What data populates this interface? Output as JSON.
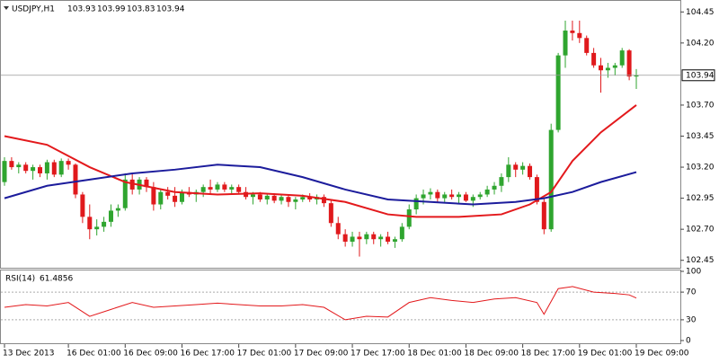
{
  "chart_data": {
    "type": "candlestick",
    "symbol": "USDJPY,H1",
    "up_color": "#2fa52f",
    "down_color": "#e0191c",
    "open": [
      103.08,
      103.25,
      103.2,
      103.22,
      103.17,
      103.2,
      103.15,
      103.24,
      103.14,
      103.25,
      103.22,
      102.98,
      102.8,
      102.7,
      102.72,
      102.76,
      102.85,
      102.87,
      103.1,
      103.02,
      103.1,
      103.04,
      102.9,
      103.0,
      102.97,
      102.92,
      103.0,
      102.98,
      103.0,
      103.04,
      103.02,
      103.06,
      103.02,
      103.04,
      103.0,
      102.96,
      102.98,
      102.94,
      102.97,
      102.93,
      102.96,
      102.92,
      102.94,
      102.96,
      102.94,
      102.96,
      102.91,
      102.75,
      102.66,
      102.6,
      102.64,
      102.62,
      102.66,
      102.62,
      102.64,
      102.6,
      102.62,
      102.72,
      102.86,
      102.95,
      102.98,
      103.0,
      102.95,
      102.98,
      102.96,
      102.98,
      102.93,
      102.96,
      102.98,
      103.02,
      103.05,
      103.12,
      103.22,
      103.18,
      103.21,
      103.12,
      102.92,
      102.7,
      103.5,
      104.1,
      104.3,
      104.28,
      104.24,
      104.12,
      104.02,
      103.98,
      104.0,
      104.02,
      104.14,
      103.93
    ],
    "high": [
      103.28,
      103.28,
      103.24,
      103.24,
      103.22,
      103.22,
      103.26,
      103.26,
      103.27,
      103.27,
      103.23,
      103.0,
      102.9,
      102.78,
      102.8,
      102.9,
      102.9,
      103.15,
      103.15,
      103.12,
      103.12,
      103.08,
      103.02,
      103.04,
      103.04,
      103.02,
      103.04,
      103.02,
      103.06,
      103.1,
      103.08,
      103.08,
      103.06,
      103.06,
      103.04,
      103.0,
      103.0,
      102.99,
      102.99,
      102.98,
      102.98,
      102.96,
      102.98,
      102.99,
      102.98,
      102.98,
      102.94,
      102.8,
      102.7,
      102.68,
      102.68,
      102.68,
      102.68,
      102.66,
      102.68,
      102.64,
      102.75,
      102.9,
      102.98,
      103.02,
      103.03,
      103.02,
      103.0,
      103.02,
      103.0,
      103.0,
      102.98,
      103.0,
      103.05,
      103.08,
      103.15,
      103.28,
      103.24,
      103.24,
      103.23,
      103.14,
      102.95,
      103.55,
      104.12,
      104.38,
      104.38,
      104.38,
      104.26,
      104.16,
      104.08,
      104.04,
      104.04,
      104.16,
      104.15,
      103.99
    ],
    "low": [
      103.05,
      103.18,
      103.15,
      103.15,
      103.1,
      103.12,
      103.1,
      103.12,
      103.12,
      103.18,
      102.95,
      102.75,
      102.62,
      102.65,
      102.68,
      102.72,
      102.8,
      102.85,
      102.98,
      102.98,
      103.0,
      102.85,
      102.86,
      102.94,
      102.88,
      102.9,
      102.96,
      102.92,
      102.96,
      102.98,
      103.0,
      103.0,
      102.98,
      102.98,
      102.94,
      102.9,
      102.92,
      102.9,
      102.91,
      102.9,
      102.88,
      102.86,
      102.92,
      102.92,
      102.9,
      102.88,
      102.72,
      102.62,
      102.56,
      102.56,
      102.48,
      102.58,
      102.58,
      102.56,
      102.58,
      102.55,
      102.6,
      102.7,
      102.82,
      102.9,
      102.94,
      102.92,
      102.92,
      102.94,
      102.9,
      102.92,
      102.88,
      102.94,
      102.96,
      102.98,
      103.0,
      103.08,
      103.12,
      103.14,
      103.1,
      102.9,
      102.66,
      102.68,
      103.48,
      104.0,
      104.22,
      104.2,
      104.1,
      104.0,
      103.8,
      103.92,
      103.94,
      104.0,
      103.9,
      103.83
    ],
    "close": [
      103.25,
      103.2,
      103.22,
      103.17,
      103.2,
      103.15,
      103.24,
      103.14,
      103.25,
      103.22,
      102.98,
      102.8,
      102.7,
      102.72,
      102.76,
      102.85,
      102.87,
      103.1,
      103.02,
      103.1,
      103.04,
      102.9,
      103.0,
      102.97,
      102.92,
      103.0,
      102.98,
      103.0,
      103.04,
      103.02,
      103.06,
      103.02,
      103.04,
      103.0,
      102.96,
      102.98,
      102.94,
      102.97,
      102.93,
      102.96,
      102.92,
      102.94,
      102.96,
      102.94,
      102.96,
      102.91,
      102.75,
      102.66,
      102.6,
      102.64,
      102.62,
      102.66,
      102.62,
      102.64,
      102.6,
      102.62,
      102.72,
      102.86,
      102.95,
      102.98,
      103.0,
      102.95,
      102.98,
      102.96,
      102.98,
      102.93,
      102.96,
      102.98,
      103.02,
      103.05,
      103.12,
      103.22,
      103.18,
      103.21,
      103.12,
      102.92,
      102.7,
      103.5,
      104.1,
      104.3,
      104.28,
      104.24,
      104.12,
      104.02,
      103.98,
      104.0,
      104.02,
      104.14,
      103.93,
      103.94
    ],
    "overlays": [
      {
        "color": "#e3191c",
        "x": [
          0,
          6,
          12,
          17,
          24,
          30,
          36,
          42,
          48,
          54,
          58,
          64,
          70,
          74,
          77,
          80,
          84,
          89
        ],
        "values": [
          103.45,
          103.38,
          103.2,
          103.08,
          103.0,
          102.98,
          102.99,
          102.97,
          102.92,
          102.82,
          102.8,
          102.8,
          102.82,
          102.9,
          103.0,
          103.25,
          103.48,
          103.7
        ]
      },
      {
        "color": "#1c1c9c",
        "x": [
          0,
          6,
          12,
          18,
          24,
          30,
          36,
          42,
          48,
          54,
          60,
          66,
          72,
          76,
          80,
          84,
          89
        ],
        "values": [
          102.95,
          103.05,
          103.1,
          103.15,
          103.18,
          103.22,
          103.2,
          103.12,
          103.02,
          102.94,
          102.92,
          102.9,
          102.92,
          102.95,
          103.0,
          103.08,
          103.16
        ]
      }
    ],
    "xlim": [
      0,
      89
    ],
    "xticks": [
      {
        "value": 0,
        "label": "13 Dec 2013"
      },
      {
        "value": 9,
        "label": "16 Dec 01:00"
      },
      {
        "value": 17,
        "label": "16 Dec 09:00"
      },
      {
        "value": 25,
        "label": "16 Dec 17:00"
      },
      {
        "value": 33,
        "label": "17 Dec 01:00"
      },
      {
        "value": 41,
        "label": "17 Dec 09:00"
      },
      {
        "value": 49,
        "label": "17 Dec 17:00"
      },
      {
        "value": 57,
        "label": "18 Dec 01:00"
      },
      {
        "value": 65,
        "label": "18 Dec 09:00"
      },
      {
        "value": 73,
        "label": "18 Dec 17:00"
      },
      {
        "value": 81,
        "label": "19 Dec 01:00"
      },
      {
        "value": 89,
        "label": "19 Dec 09:00"
      }
    ],
    "ylim": [
      102.39,
      104.51
    ],
    "yticks": [
      104.45,
      {
        "value": 104.2,
        "label": "104.20"
      },
      {
        "value": 103.7,
        "label": "103.70"
      },
      103.45,
      {
        "value": 103.2,
        "label": "103.20"
      },
      102.95,
      {
        "value": 102.7,
        "label": "102.70"
      },
      102.45
    ],
    "indicator": {
      "title": "RSI(14)",
      "color": "#e3191c",
      "x": [
        0,
        3,
        6,
        9,
        12,
        15,
        18,
        21,
        24,
        27,
        30,
        33,
        36,
        39,
        42,
        45,
        48,
        51,
        54,
        57,
        60,
        63,
        66,
        69,
        72,
        75,
        76,
        78,
        80,
        83,
        86,
        88,
        89
      ],
      "values": [
        48,
        52,
        50,
        55,
        35,
        45,
        55,
        48,
        50,
        52,
        54,
        52,
        50,
        50,
        52,
        48,
        30,
        35,
        34,
        55,
        62,
        58,
        55,
        60,
        62,
        55,
        38,
        75,
        78,
        70,
        68,
        66,
        61.4856
      ],
      "ylim": [
        0,
        100
      ],
      "yticks": [
        100,
        70,
        30,
        0
      ],
      "levels": [
        70,
        30
      ]
    }
  }
}
